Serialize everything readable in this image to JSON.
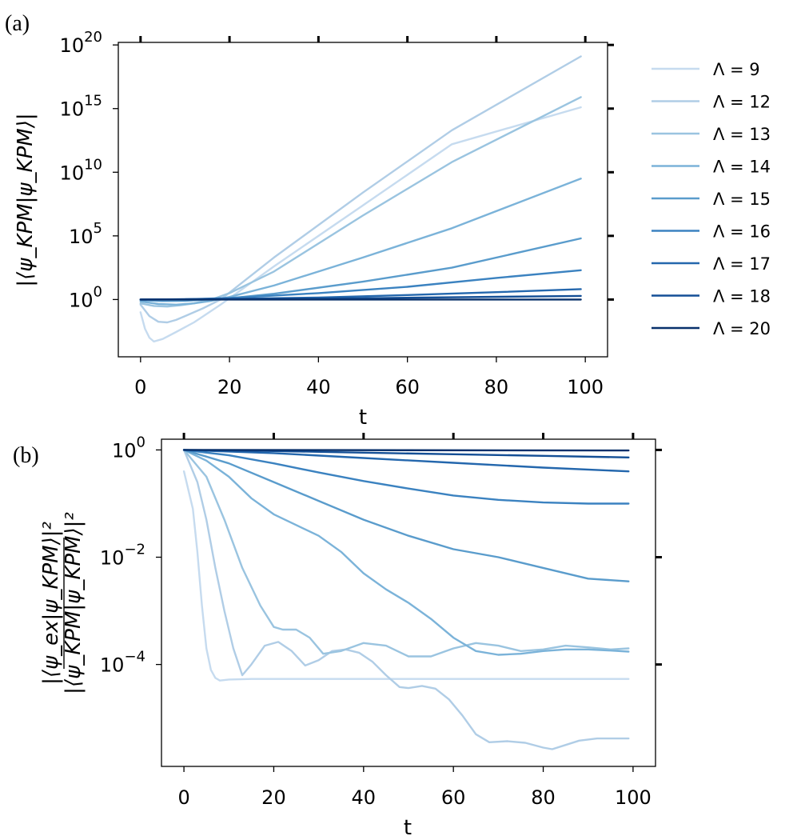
{
  "panels": {
    "a": {
      "label": "(a)",
      "xlabel": "t",
      "ylabel": "|⟨ψ_KPM|ψ_KPM⟩|"
    },
    "b": {
      "label": "(b)",
      "xlabel": "t",
      "ylabel_numerator": "|⟨ψ_ex|ψ_KPM⟩|²",
      "ylabel_denominator": "|⟨ψ_KPM|ψ_KPM⟩|²"
    }
  },
  "legend": [
    "Λ = 9",
    "Λ = 12",
    "Λ = 13",
    "Λ = 14",
    "Λ = 15",
    "Λ = 16",
    "Λ = 17",
    "Λ = 18",
    "Λ = 20"
  ],
  "colors": [
    "#c6dbef",
    "#b0cde6",
    "#9ac4e0",
    "#7bb3d9",
    "#5a9ccc",
    "#3b82c0",
    "#2467ad",
    "#144f96",
    "#08306b"
  ],
  "chart_data": [
    {
      "type": "line",
      "title": "(a)",
      "xlabel": "t",
      "ylabel": "|⟨ψ_KPM|ψ_KPM⟩|",
      "xlim": [
        -5,
        105
      ],
      "ylim_log10": [
        -4.5,
        20.2
      ],
      "yscale": "log",
      "xticks": [
        0,
        20,
        40,
        60,
        80,
        100
      ],
      "xtick_labels": [
        "0",
        "20",
        "40",
        "60",
        "80",
        "100"
      ],
      "yticks_log10": [
        0,
        5,
        10,
        15,
        20
      ],
      "ytick_labels": [
        {
          "base": "10",
          "exp": "0"
        },
        {
          "base": "10",
          "exp": "5"
        },
        {
          "base": "10",
          "exp": "10"
        },
        {
          "base": "10",
          "exp": "15"
        },
        {
          "base": "10",
          "exp": "20"
        }
      ],
      "series": [
        {
          "name": "Λ = 9",
          "x": [
            0,
            1,
            2,
            3,
            5,
            8,
            12,
            18,
            30,
            50,
            70,
            99
          ],
          "log10_y": [
            -1.0,
            -2.3,
            -3.0,
            -3.3,
            -3.1,
            -2.55,
            -1.8,
            -0.4,
            2.6,
            7.4,
            12.2,
            15.1
          ]
        },
        {
          "name": "Λ = 12",
          "x": [
            0,
            2,
            4,
            6,
            8,
            10,
            14,
            18,
            30,
            50,
            70,
            99
          ],
          "log10_y": [
            -0.4,
            -1.3,
            -1.75,
            -1.8,
            -1.6,
            -1.3,
            -0.7,
            0.0,
            3.3,
            8.4,
            13.3,
            19.1
          ]
        },
        {
          "name": "Λ = 13",
          "x": [
            0,
            3,
            6,
            9,
            12,
            16,
            20,
            30,
            50,
            70,
            99
          ],
          "log10_y": [
            -0.3,
            -0.5,
            -0.55,
            -0.45,
            -0.3,
            0.0,
            0.5,
            2.2,
            6.6,
            10.8,
            15.9
          ]
        },
        {
          "name": "Λ = 14",
          "x": [
            0,
            4,
            8,
            12,
            16,
            20,
            30,
            50,
            70,
            99
          ],
          "log10_y": [
            -0.15,
            -0.35,
            -0.4,
            -0.3,
            -0.1,
            0.2,
            1.1,
            3.3,
            5.6,
            9.5
          ]
        },
        {
          "name": "Λ = 15",
          "x": [
            0,
            5,
            10,
            15,
            20,
            30,
            50,
            70,
            99
          ],
          "log10_y": [
            -0.05,
            -0.12,
            -0.1,
            0.0,
            0.1,
            0.45,
            1.4,
            2.5,
            4.8
          ]
        },
        {
          "name": "Λ = 16",
          "x": [
            0,
            10,
            20,
            40,
            60,
            80,
            99
          ],
          "log10_y": [
            0,
            0.02,
            0.12,
            0.5,
            1.0,
            1.7,
            2.3
          ]
        },
        {
          "name": "Λ = 17",
          "x": [
            0,
            20,
            40,
            60,
            80,
            99
          ],
          "log10_y": [
            0,
            0.05,
            0.15,
            0.35,
            0.58,
            0.82
          ]
        },
        {
          "name": "Λ = 18",
          "x": [
            0,
            50,
            99
          ],
          "log10_y": [
            0,
            0.1,
            0.28
          ]
        },
        {
          "name": "Λ = 20",
          "x": [
            0,
            99
          ],
          "log10_y": [
            0,
            0.0
          ]
        }
      ]
    },
    {
      "type": "line",
      "title": "(b)",
      "xlabel": "t",
      "ylabel": "|⟨ψ_ex|ψ_KPM⟩|² / |⟨ψ_KPM|ψ_KPM⟩|²",
      "xlim": [
        -5,
        105
      ],
      "ylim_log10": [
        -5.9,
        0.2
      ],
      "yscale": "log",
      "xticks": [
        0,
        20,
        40,
        60,
        80,
        100
      ],
      "xtick_labels": [
        "0",
        "20",
        "40",
        "60",
        "80",
        "100"
      ],
      "yticks_log10": [
        0,
        -2,
        -4
      ],
      "ytick_labels": [
        {
          "base": "10",
          "exp": "0"
        },
        {
          "base": "10",
          "exp": "−2"
        },
        {
          "base": "10",
          "exp": "−4"
        }
      ],
      "series": [
        {
          "name": "Λ = 9",
          "x": [
            0,
            2,
            3,
            4,
            5,
            6,
            7,
            8,
            10,
            15,
            30,
            60,
            99
          ],
          "log10_y": [
            -0.4,
            -1.1,
            -1.9,
            -2.9,
            -3.7,
            -4.1,
            -4.25,
            -4.3,
            -4.28,
            -4.27,
            -4.27,
            -4.27,
            -4.27
          ]
        },
        {
          "name": "Λ = 12",
          "x": [
            0,
            3,
            5,
            7,
            9,
            11,
            13,
            15,
            18,
            21,
            24,
            27,
            30,
            33,
            36,
            39,
            42,
            45,
            48,
            50,
            53,
            56,
            59,
            62,
            65,
            68,
            72,
            76,
            80,
            82,
            85,
            88,
            92,
            96,
            99
          ],
          "log10_y": [
            0,
            -0.6,
            -1.3,
            -2.2,
            -3.0,
            -3.7,
            -4.2,
            -4.0,
            -3.65,
            -3.58,
            -3.75,
            -4.02,
            -3.92,
            -3.75,
            -3.72,
            -3.78,
            -3.95,
            -4.2,
            -4.42,
            -4.44,
            -4.4,
            -4.45,
            -4.65,
            -4.95,
            -5.3,
            -5.45,
            -5.43,
            -5.46,
            -5.55,
            -5.58,
            -5.5,
            -5.42,
            -5.38,
            -5.38,
            -5.38
          ]
        },
        {
          "name": "Λ = 13",
          "x": [
            0,
            5,
            9,
            13,
            17,
            20,
            22,
            25,
            28,
            31,
            35,
            40,
            45,
            50,
            55,
            60,
            65,
            70,
            75,
            80,
            85,
            90,
            95,
            99
          ],
          "log10_y": [
            0,
            -0.5,
            -1.3,
            -2.2,
            -2.9,
            -3.3,
            -3.35,
            -3.35,
            -3.5,
            -3.8,
            -3.75,
            -3.6,
            -3.65,
            -3.85,
            -3.85,
            -3.7,
            -3.6,
            -3.65,
            -3.75,
            -3.72,
            -3.65,
            -3.68,
            -3.72,
            -3.7
          ]
        },
        {
          "name": "Λ = 14",
          "x": [
            0,
            5,
            10,
            15,
            20,
            25,
            30,
            35,
            40,
            45,
            50,
            55,
            60,
            65,
            70,
            75,
            80,
            85,
            90,
            95,
            99
          ],
          "log10_y": [
            0,
            -0.2,
            -0.5,
            -0.9,
            -1.2,
            -1.4,
            -1.6,
            -1.9,
            -2.3,
            -2.6,
            -2.85,
            -3.15,
            -3.5,
            -3.75,
            -3.82,
            -3.8,
            -3.75,
            -3.72,
            -3.72,
            -3.74,
            -3.76
          ]
        },
        {
          "name": "Λ = 15",
          "x": [
            0,
            10,
            20,
            30,
            40,
            50,
            60,
            70,
            80,
            90,
            99
          ],
          "log10_y": [
            0,
            -0.25,
            -0.6,
            -0.95,
            -1.3,
            -1.6,
            -1.85,
            -2.0,
            -2.2,
            -2.4,
            -2.45
          ]
        },
        {
          "name": "Λ = 16",
          "x": [
            0,
            10,
            20,
            30,
            40,
            50,
            60,
            70,
            80,
            90,
            99
          ],
          "log10_y": [
            0,
            -0.1,
            -0.25,
            -0.42,
            -0.58,
            -0.72,
            -0.85,
            -0.93,
            -0.98,
            -1.0,
            -1.0
          ]
        },
        {
          "name": "Λ = 17",
          "x": [
            0,
            20,
            40,
            60,
            80,
            99
          ],
          "log10_y": [
            0,
            -0.06,
            -0.15,
            -0.24,
            -0.33,
            -0.4
          ]
        },
        {
          "name": "Λ = 18",
          "x": [
            0,
            20,
            40,
            60,
            80,
            99
          ],
          "log10_y": [
            0,
            -0.02,
            -0.05,
            -0.08,
            -0.11,
            -0.14
          ]
        },
        {
          "name": "Λ = 20",
          "x": [
            0,
            99
          ],
          "log10_y": [
            0,
            -0.01
          ]
        }
      ]
    }
  ]
}
